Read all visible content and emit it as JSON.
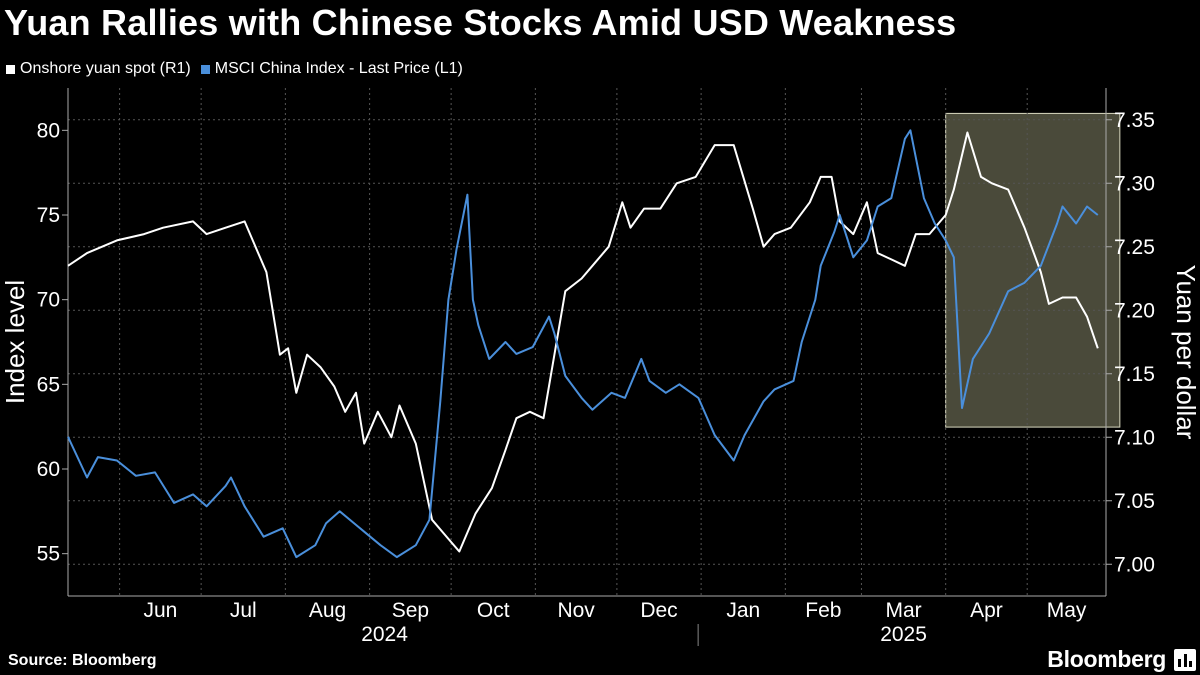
{
  "page": {
    "title": "Yuan Rallies with Chinese Stocks Amid USD Weakness",
    "source": "Source: Bloomberg",
    "brand": "Bloomberg"
  },
  "chart_data": {
    "type": "line",
    "title": "Yuan Rallies with Chinese Stocks Amid USD Weakness",
    "legend_placement": "top-left",
    "grid": true,
    "x_axis": {
      "range": [
        "2024-05-13",
        "2025-05-30"
      ],
      "months": [
        "Jun",
        "Jul",
        "Aug",
        "Sep",
        "Oct",
        "Nov",
        "Dec",
        "Jan",
        "Feb",
        "Mar",
        "Apr",
        "May"
      ],
      "years": [
        "2024",
        "2025"
      ]
    },
    "left_axis": {
      "label": "Index level",
      "ticks": [
        55,
        60,
        65,
        70,
        75,
        80
      ],
      "ylim": [
        52.5,
        82.5
      ]
    },
    "right_axis": {
      "label": "Yuan per dollar",
      "ticks": [
        "7.00",
        "7.05",
        "7.10",
        "7.15",
        "7.20",
        "7.25",
        "7.30",
        "7.35"
      ],
      "ylim": [
        6.975,
        7.375
      ]
    },
    "highlight_region": {
      "x_range": [
        "2025-04-01",
        "2025-05-27"
      ],
      "color": "#4a4a3a"
    },
    "series": [
      {
        "name": "Onshore yuan spot  (R1)",
        "axis": "right",
        "color": "#ffffff",
        "points": [
          [
            "2024-05-13",
            7.235
          ],
          [
            "2024-05-20",
            7.245
          ],
          [
            "2024-05-31",
            7.255
          ],
          [
            "2024-06-10",
            7.26
          ],
          [
            "2024-06-17",
            7.265
          ],
          [
            "2024-06-28",
            7.27
          ],
          [
            "2024-07-03",
            7.26
          ],
          [
            "2024-07-10",
            7.265
          ],
          [
            "2024-07-17",
            7.27
          ],
          [
            "2024-07-22",
            7.245
          ],
          [
            "2024-07-25",
            7.23
          ],
          [
            "2024-07-30",
            7.165
          ],
          [
            "2024-08-02",
            7.17
          ],
          [
            "2024-08-05",
            7.135
          ],
          [
            "2024-08-09",
            7.165
          ],
          [
            "2024-08-14",
            7.155
          ],
          [
            "2024-08-19",
            7.14
          ],
          [
            "2024-08-23",
            7.12
          ],
          [
            "2024-08-27",
            7.135
          ],
          [
            "2024-08-30",
            7.095
          ],
          [
            "2024-09-04",
            7.12
          ],
          [
            "2024-09-09",
            7.1
          ],
          [
            "2024-09-12",
            7.125
          ],
          [
            "2024-09-18",
            7.095
          ],
          [
            "2024-09-24",
            7.035
          ],
          [
            "2024-09-30",
            7.02
          ],
          [
            "2024-10-04",
            7.01
          ],
          [
            "2024-10-10",
            7.04
          ],
          [
            "2024-10-16",
            7.06
          ],
          [
            "2024-10-21",
            7.09
          ],
          [
            "2024-10-25",
            7.115
          ],
          [
            "2024-10-30",
            7.12
          ],
          [
            "2024-11-04",
            7.115
          ],
          [
            "2024-11-08",
            7.165
          ],
          [
            "2024-11-12",
            7.215
          ],
          [
            "2024-11-18",
            7.225
          ],
          [
            "2024-11-22",
            7.235
          ],
          [
            "2024-11-28",
            7.25
          ],
          [
            "2024-12-03",
            7.285
          ],
          [
            "2024-12-06",
            7.265
          ],
          [
            "2024-12-11",
            7.28
          ],
          [
            "2024-12-17",
            7.28
          ],
          [
            "2024-12-23",
            7.3
          ],
          [
            "2024-12-30",
            7.305
          ],
          [
            "2025-01-06",
            7.33
          ],
          [
            "2025-01-13",
            7.33
          ],
          [
            "2025-01-20",
            7.28
          ],
          [
            "2025-01-24",
            7.25
          ],
          [
            "2025-01-28",
            7.26
          ],
          [
            "2025-02-03",
            7.265
          ],
          [
            "2025-02-10",
            7.285
          ],
          [
            "2025-02-14",
            7.305
          ],
          [
            "2025-02-18",
            7.305
          ],
          [
            "2025-02-21",
            7.27
          ],
          [
            "2025-02-26",
            7.26
          ],
          [
            "2025-03-03",
            7.285
          ],
          [
            "2025-03-07",
            7.245
          ],
          [
            "2025-03-12",
            7.24
          ],
          [
            "2025-03-17",
            7.235
          ],
          [
            "2025-03-21",
            7.26
          ],
          [
            "2025-03-26",
            7.26
          ],
          [
            "2025-04-01",
            7.275
          ],
          [
            "2025-04-04",
            7.295
          ],
          [
            "2025-04-09",
            7.34
          ],
          [
            "2025-04-14",
            7.305
          ],
          [
            "2025-04-18",
            7.3
          ],
          [
            "2025-04-24",
            7.295
          ],
          [
            "2025-04-30",
            7.265
          ],
          [
            "2025-05-06",
            7.23
          ],
          [
            "2025-05-09",
            7.205
          ],
          [
            "2025-05-14",
            7.21
          ],
          [
            "2025-05-19",
            7.21
          ],
          [
            "2025-05-23",
            7.195
          ],
          [
            "2025-05-27",
            7.17
          ]
        ]
      },
      {
        "name": "MSCI China Index - Last Price (L1)",
        "axis": "left",
        "color": "#4a8fdb",
        "points": [
          [
            "2024-05-13",
            61.9
          ],
          [
            "2024-05-20",
            59.5
          ],
          [
            "2024-05-24",
            60.7
          ],
          [
            "2024-05-31",
            60.5
          ],
          [
            "2024-06-07",
            59.6
          ],
          [
            "2024-06-14",
            59.8
          ],
          [
            "2024-06-21",
            58.0
          ],
          [
            "2024-06-28",
            58.5
          ],
          [
            "2024-07-03",
            57.8
          ],
          [
            "2024-07-10",
            59.0
          ],
          [
            "2024-07-12",
            59.5
          ],
          [
            "2024-07-17",
            57.8
          ],
          [
            "2024-07-24",
            56.0
          ],
          [
            "2024-07-31",
            56.5
          ],
          [
            "2024-08-05",
            54.8
          ],
          [
            "2024-08-12",
            55.5
          ],
          [
            "2024-08-16",
            56.8
          ],
          [
            "2024-08-21",
            57.5
          ],
          [
            "2024-08-27",
            56.7
          ],
          [
            "2024-08-30",
            56.3
          ],
          [
            "2024-09-05",
            55.5
          ],
          [
            "2024-09-11",
            54.8
          ],
          [
            "2024-09-18",
            55.5
          ],
          [
            "2024-09-23",
            57.0
          ],
          [
            "2024-09-27",
            64.0
          ],
          [
            "2024-09-30",
            70.0
          ],
          [
            "2024-10-03",
            73.0
          ],
          [
            "2024-10-07",
            76.2
          ],
          [
            "2024-10-09",
            70.0
          ],
          [
            "2024-10-11",
            68.5
          ],
          [
            "2024-10-15",
            66.5
          ],
          [
            "2024-10-21",
            67.5
          ],
          [
            "2024-10-25",
            66.8
          ],
          [
            "2024-10-31",
            67.2
          ],
          [
            "2024-11-06",
            69.0
          ],
          [
            "2024-11-08",
            68.0
          ],
          [
            "2024-11-12",
            65.5
          ],
          [
            "2024-11-18",
            64.2
          ],
          [
            "2024-11-22",
            63.5
          ],
          [
            "2024-11-29",
            64.5
          ],
          [
            "2024-12-04",
            64.2
          ],
          [
            "2024-12-10",
            66.5
          ],
          [
            "2024-12-13",
            65.2
          ],
          [
            "2024-12-19",
            64.5
          ],
          [
            "2024-12-24",
            65.0
          ],
          [
            "2024-12-31",
            64.2
          ],
          [
            "2025-01-06",
            62.0
          ],
          [
            "2025-01-13",
            60.5
          ],
          [
            "2025-01-17",
            62.0
          ],
          [
            "2025-01-24",
            64.0
          ],
          [
            "2025-01-28",
            64.7
          ],
          [
            "2025-02-04",
            65.2
          ],
          [
            "2025-02-07",
            67.5
          ],
          [
            "2025-02-12",
            70.0
          ],
          [
            "2025-02-14",
            72.0
          ],
          [
            "2025-02-19",
            74.0
          ],
          [
            "2025-02-21",
            75.0
          ],
          [
            "2025-02-26",
            72.5
          ],
          [
            "2025-03-03",
            73.5
          ],
          [
            "2025-03-07",
            75.5
          ],
          [
            "2025-03-12",
            76.0
          ],
          [
            "2025-03-17",
            79.5
          ],
          [
            "2025-03-19",
            80.0
          ],
          [
            "2025-03-24",
            76.0
          ],
          [
            "2025-03-28",
            74.5
          ],
          [
            "2025-04-01",
            73.5
          ],
          [
            "2025-04-04",
            72.5
          ],
          [
            "2025-04-07",
            63.6
          ],
          [
            "2025-04-11",
            66.5
          ],
          [
            "2025-04-17",
            68.0
          ],
          [
            "2025-04-24",
            70.5
          ],
          [
            "2025-04-30",
            71.0
          ],
          [
            "2025-05-06",
            72.0
          ],
          [
            "2025-05-12",
            74.5
          ],
          [
            "2025-05-14",
            75.5
          ],
          [
            "2025-05-19",
            74.5
          ],
          [
            "2025-05-23",
            75.5
          ],
          [
            "2025-05-27",
            75.0
          ]
        ]
      }
    ]
  }
}
